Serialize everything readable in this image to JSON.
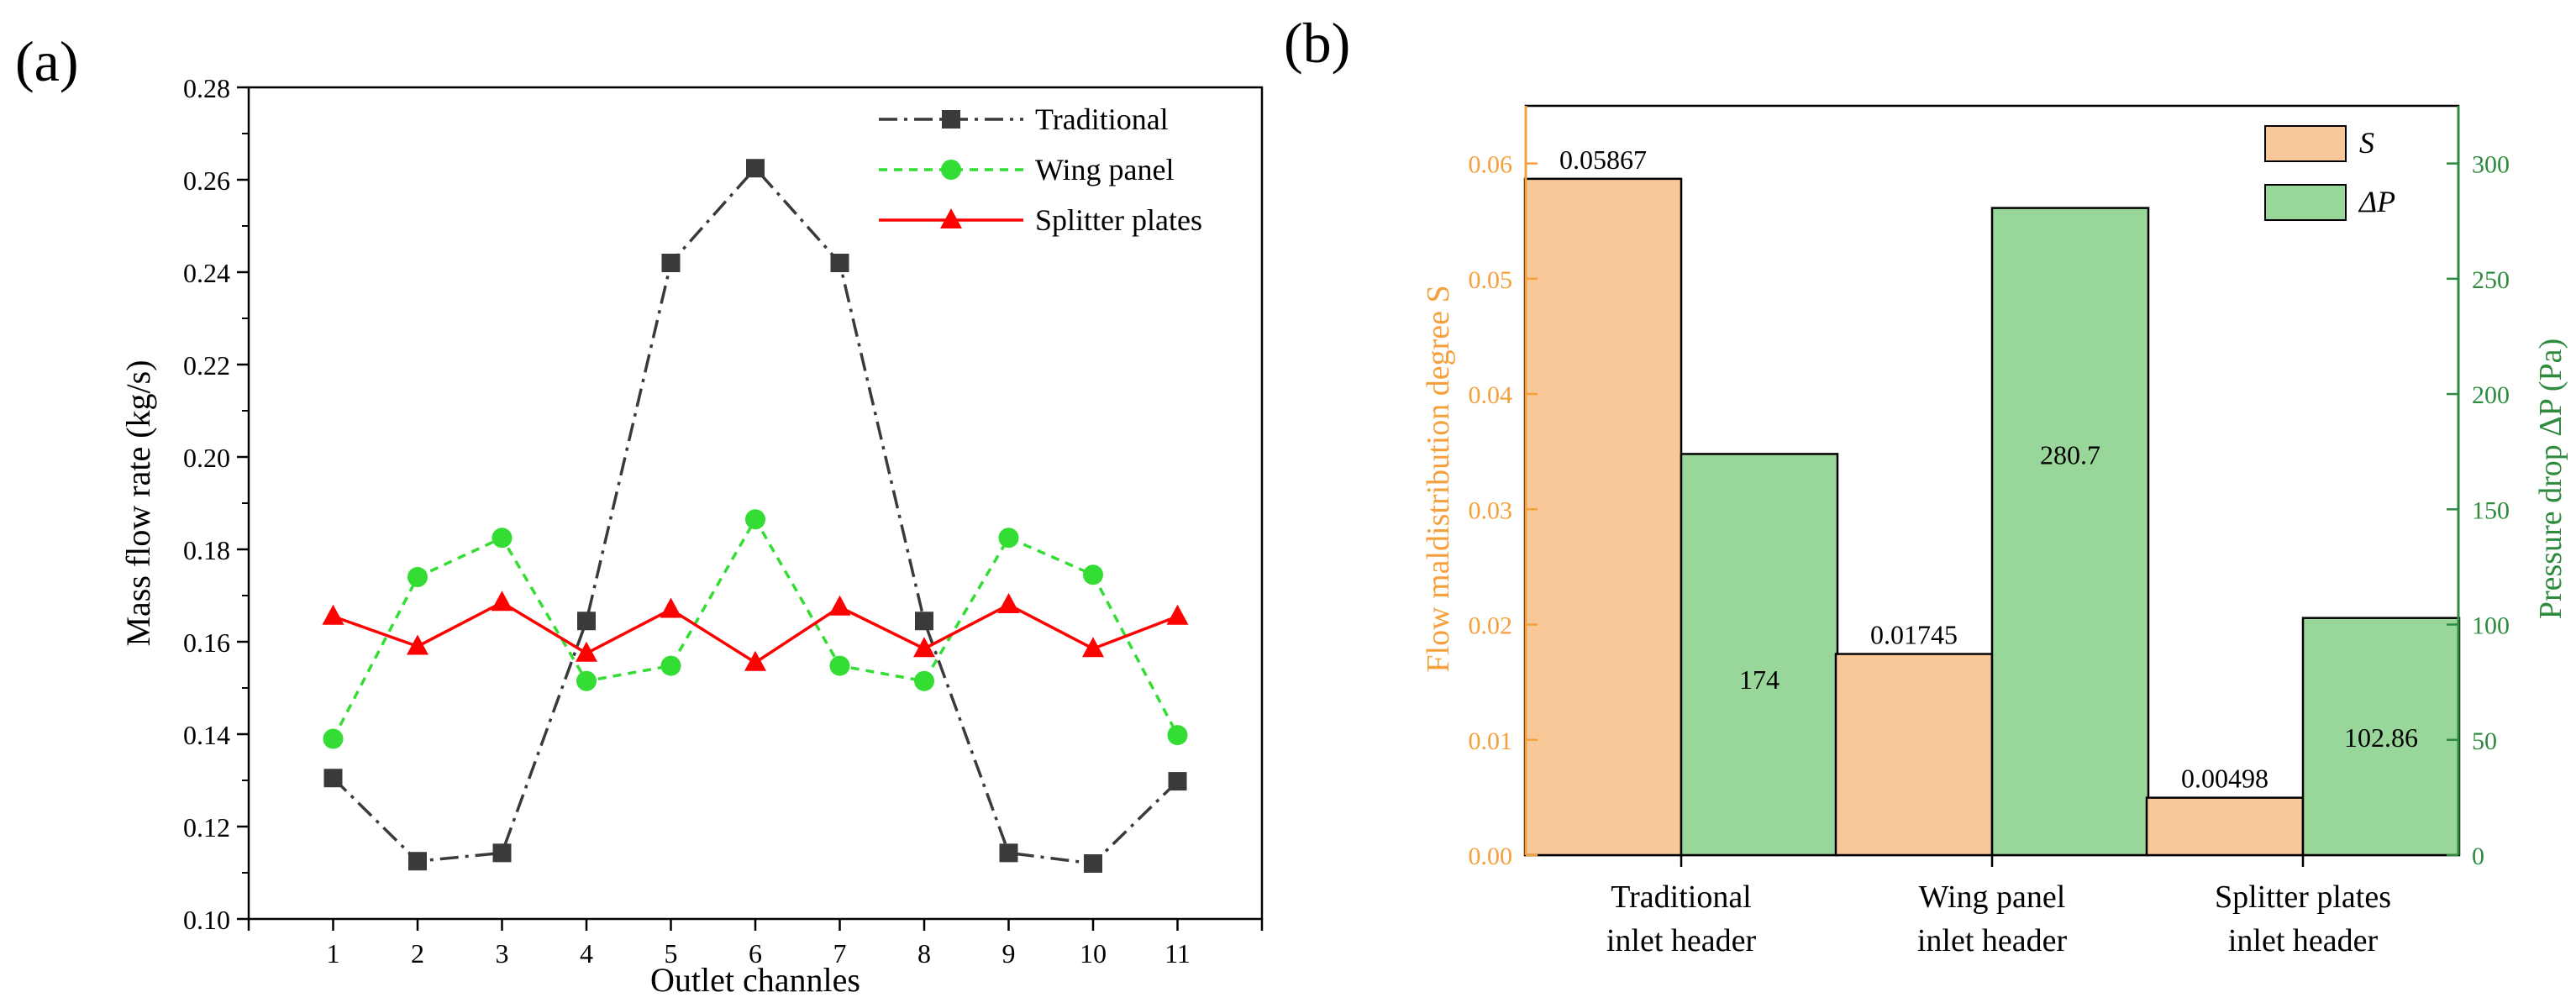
{
  "panels": {
    "a_label": "(a)",
    "b_label": "(b)"
  },
  "chart_data": [
    {
      "type": "line",
      "xlabel": "Outlet channles",
      "ylabel": "Mass flow rate (kg/s)",
      "x": [
        1,
        2,
        3,
        4,
        5,
        6,
        7,
        8,
        9,
        10,
        11
      ],
      "xlim": [
        0,
        12
      ],
      "ylim": [
        0.1,
        0.28
      ],
      "yticks": [
        "0.10",
        "0.12",
        "0.14",
        "0.16",
        "0.18",
        "0.20",
        "0.22",
        "0.24",
        "0.26",
        "0.28"
      ],
      "legend_position": "top-right",
      "series": [
        {
          "name": "Traditional",
          "color": "#3a3a3a",
          "marker": "square",
          "line": "dash-dot",
          "values": [
            0.1305,
            0.1125,
            0.1143,
            0.1645,
            0.242,
            0.2625,
            0.242,
            0.1645,
            0.1143,
            0.112,
            0.1298
          ]
        },
        {
          "name": "Wing panel",
          "color": "#33dd33",
          "marker": "circle",
          "line": "dashed",
          "values": [
            0.139,
            0.174,
            0.1825,
            0.1515,
            0.1548,
            0.1865,
            0.1548,
            0.1515,
            0.1825,
            0.1745,
            0.1398
          ]
        },
        {
          "name": "Splitter plates",
          "color": "#ff0000",
          "marker": "triangle",
          "line": "solid",
          "values": [
            0.1655,
            0.159,
            0.1685,
            0.1575,
            0.167,
            0.1555,
            0.1675,
            0.1585,
            0.168,
            0.1585,
            0.1655
          ]
        }
      ]
    },
    {
      "type": "bar",
      "categories": [
        [
          "Traditional",
          "inlet header"
        ],
        [
          "Wing panel",
          "inlet header"
        ],
        [
          "Splitter plates",
          "inlet header"
        ]
      ],
      "ylabel_left": "Flow maldistribution degree S",
      "ylabel_right": "Pressure drop ΔP (Pa)",
      "ylim_left": [
        0,
        0.065
      ],
      "yticks_left": [
        "0.00",
        "0.01",
        "0.02",
        "0.03",
        "0.04",
        "0.05",
        "0.06"
      ],
      "ylim_right": [
        0,
        325
      ],
      "yticks_right": [
        "0",
        "50",
        "100",
        "150",
        "200",
        "250",
        "300"
      ],
      "legend_position": "top-right",
      "colors": {
        "left_axis": "#f5a03c",
        "right_axis": "#2e8b3e"
      },
      "series": [
        {
          "name": "S",
          "axis": "left",
          "color": "#f9c899",
          "values": [
            0.05867,
            0.01745,
            0.00498
          ],
          "labels": [
            "0.05867",
            "0.01745",
            "0.00498"
          ]
        },
        {
          "name": "ΔP",
          "axis": "right",
          "color": "#99d699",
          "values": [
            174,
            280.7,
            102.86
          ],
          "labels": [
            "174",
            "280.7",
            "102.86"
          ]
        }
      ]
    }
  ]
}
